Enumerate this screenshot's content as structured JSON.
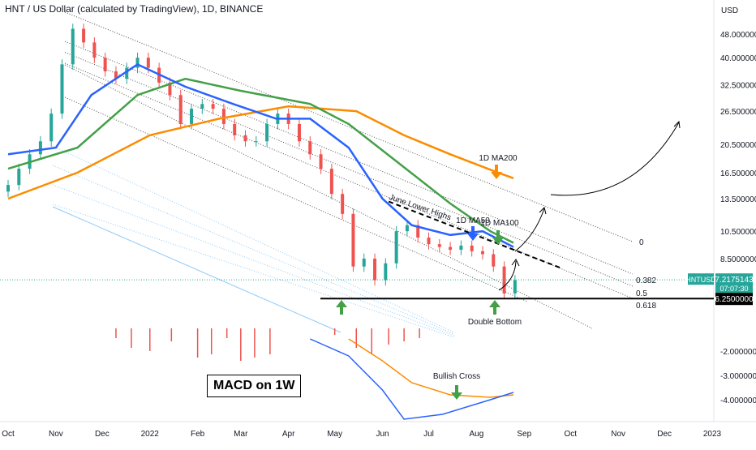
{
  "title": "HNT / US Dollar (calculated by TradingView), 1D, BINANCE",
  "macd_label": "MACD on 1W",
  "chart_data": {
    "type": "candlestick",
    "pair": "HNTUSD",
    "price_axis": {
      "unit": "USD",
      "scale": "log",
      "ticks": [
        "48.0000000",
        "40.0000000",
        "32.5000000",
        "26.5000000",
        "20.5000000",
        "16.5000000",
        "13.5000000",
        "10.5000000",
        "8.5000000"
      ],
      "tick_values": [
        48,
        40,
        32.5,
        26.5,
        20.5,
        16.5,
        13.5,
        10.5,
        8.5
      ]
    },
    "macd_axis": {
      "ticks": [
        "-2.0000000",
        "-3.0000000",
        "-4.0000000"
      ],
      "tick_values": [
        -2,
        -3,
        -4
      ]
    },
    "time_axis": [
      "Oct",
      "Nov",
      "Dec",
      "2022",
      "Feb",
      "Mar",
      "Apr",
      "May",
      "Jun",
      "Jul",
      "Aug",
      "Sep",
      "Oct",
      "Nov",
      "Dec",
      "2023"
    ],
    "current_price": {
      "label": "HNTUSD",
      "value": "7.2175143",
      "countdown": "07:07:30",
      "price": 7.2175,
      "color": "#26a69a"
    },
    "support_level": {
      "value": "6.2500000",
      "price": 6.25
    },
    "moving_averages": [
      {
        "name": "1D MA50",
        "color": "#2962ff"
      },
      {
        "name": "1D MA100",
        "color": "#43a047"
      },
      {
        "name": "1D MA200",
        "color": "#fb8c00"
      }
    ],
    "fib_levels": [
      "0",
      "0.382",
      "0.5",
      "0.618"
    ],
    "annotations": [
      "June Lower Highs",
      "Double Bottom",
      "Bullish Cross",
      "1D MA200",
      "1D MA50",
      "1D MA100"
    ],
    "series_close": [
      {
        "date": "2021-10-01",
        "close": 15
      },
      {
        "date": "2021-10-08",
        "close": 17
      },
      {
        "date": "2021-10-15",
        "close": 19
      },
      {
        "date": "2021-10-22",
        "close": 21
      },
      {
        "date": "2021-10-29",
        "close": 26
      },
      {
        "date": "2021-11-05",
        "close": 38
      },
      {
        "date": "2021-11-12",
        "close": 50
      },
      {
        "date": "2021-11-19",
        "close": 45
      },
      {
        "date": "2021-11-26",
        "close": 40
      },
      {
        "date": "2021-12-03",
        "close": 36
      },
      {
        "date": "2021-12-10",
        "close": 34
      },
      {
        "date": "2021-12-17",
        "close": 37
      },
      {
        "date": "2021-12-24",
        "close": 40
      },
      {
        "date": "2021-12-31",
        "close": 37
      },
      {
        "date": "2022-01-07",
        "close": 33
      },
      {
        "date": "2022-01-14",
        "close": 30
      },
      {
        "date": "2022-01-21",
        "close": 24
      },
      {
        "date": "2022-01-28",
        "close": 27
      },
      {
        "date": "2022-02-04",
        "close": 28
      },
      {
        "date": "2022-02-11",
        "close": 27
      },
      {
        "date": "2022-02-18",
        "close": 24
      },
      {
        "date": "2022-02-25",
        "close": 22
      },
      {
        "date": "2022-03-04",
        "close": 21
      },
      {
        "date": "2022-03-11",
        "close": 21
      },
      {
        "date": "2022-03-18",
        "close": 24
      },
      {
        "date": "2022-03-25",
        "close": 26
      },
      {
        "date": "2022-04-01",
        "close": 24
      },
      {
        "date": "2022-04-08",
        "close": 21
      },
      {
        "date": "2022-04-15",
        "close": 19
      },
      {
        "date": "2022-04-22",
        "close": 17
      },
      {
        "date": "2022-04-29",
        "close": 14
      },
      {
        "date": "2022-05-06",
        "close": 12
      },
      {
        "date": "2022-05-13",
        "close": 8
      },
      {
        "date": "2022-05-20",
        "close": 8.5
      },
      {
        "date": "2022-05-27",
        "close": 7.2
      },
      {
        "date": "2022-06-03",
        "close": 8.2
      },
      {
        "date": "2022-06-10",
        "close": 10.5
      },
      {
        "date": "2022-06-17",
        "close": 11
      },
      {
        "date": "2022-06-24",
        "close": 10
      },
      {
        "date": "2022-07-01",
        "close": 9.5
      },
      {
        "date": "2022-07-08",
        "close": 9.3
      },
      {
        "date": "2022-07-15",
        "close": 9.1
      },
      {
        "date": "2022-07-22",
        "close": 9.4
      },
      {
        "date": "2022-07-29",
        "close": 9.0
      },
      {
        "date": "2022-08-05",
        "close": 8.8
      },
      {
        "date": "2022-08-12",
        "close": 8.0
      },
      {
        "date": "2022-08-19",
        "close": 6.5
      },
      {
        "date": "2022-08-26",
        "close": 7.2
      }
    ],
    "ma50": [
      {
        "date": "2021-10-01",
        "value": 19
      },
      {
        "date": "2021-11-01",
        "value": 20
      },
      {
        "date": "2021-11-24",
        "value": 30
      },
      {
        "date": "2021-12-24",
        "value": 38
      },
      {
        "date": "2022-01-24",
        "value": 32
      },
      {
        "date": "2022-02-24",
        "value": 28
      },
      {
        "date": "2022-03-24",
        "value": 25
      },
      {
        "date": "2022-04-15",
        "value": 25
      },
      {
        "date": "2022-05-10",
        "value": 20
      },
      {
        "date": "2022-06-01",
        "value": 13.5
      },
      {
        "date": "2022-06-20",
        "value": 11
      },
      {
        "date": "2022-07-15",
        "value": 10.2
      },
      {
        "date": "2022-08-05",
        "value": 10.5
      },
      {
        "date": "2022-08-25",
        "value": 9.3
      }
    ],
    "ma100": [
      {
        "date": "2021-10-01",
        "value": 17
      },
      {
        "date": "2021-11-15",
        "value": 20
      },
      {
        "date": "2021-12-24",
        "value": 30
      },
      {
        "date": "2022-01-24",
        "value": 34
      },
      {
        "date": "2022-03-01",
        "value": 31
      },
      {
        "date": "2022-04-15",
        "value": 28
      },
      {
        "date": "2022-05-10",
        "value": 24
      },
      {
        "date": "2022-06-10",
        "value": 18
      },
      {
        "date": "2022-07-15",
        "value": 13
      },
      {
        "date": "2022-08-10",
        "value": 10.5
      },
      {
        "date": "2022-08-25",
        "value": 9.6
      }
    ],
    "ma200": [
      {
        "date": "2021-10-01",
        "value": 13.5
      },
      {
        "date": "2021-11-15",
        "value": 16.5
      },
      {
        "date": "2022-01-01",
        "value": 22
      },
      {
        "date": "2022-02-15",
        "value": 25
      },
      {
        "date": "2022-04-01",
        "value": 27.5
      },
      {
        "date": "2022-05-15",
        "value": 26.5
      },
      {
        "date": "2022-06-15",
        "value": 22
      },
      {
        "date": "2022-07-15",
        "value": 19
      },
      {
        "date": "2022-08-15",
        "value": 16.5
      },
      {
        "date": "2022-08-25",
        "value": 15.8
      }
    ],
    "macd_line": [
      {
        "date": "2022-04-15",
        "value": -1.5
      },
      {
        "date": "2022-05-10",
        "value": -2.2
      },
      {
        "date": "2022-06-01",
        "value": -3.6
      },
      {
        "date": "2022-06-15",
        "value": -4.8
      },
      {
        "date": "2022-07-10",
        "value": -4.6
      },
      {
        "date": "2022-08-10",
        "value": -4.0
      },
      {
        "date": "2022-08-25",
        "value": -3.7
      }
    ],
    "signal_line": [
      {
        "date": "2022-05-10",
        "value": -1.5
      },
      {
        "date": "2022-06-01",
        "value": -2.4
      },
      {
        "date": "2022-06-20",
        "value": -3.3
      },
      {
        "date": "2022-07-15",
        "value": -3.8
      },
      {
        "date": "2022-08-10",
        "value": -3.9
      },
      {
        "date": "2022-08-25",
        "value": -3.8
      }
    ],
    "macd_histogram": [
      {
        "date": "2021-12-10",
        "value": -0.3
      },
      {
        "date": "2021-12-20",
        "value": -0.6
      },
      {
        "date": "2022-01-01",
        "value": -0.7
      },
      {
        "date": "2022-01-15",
        "value": -0.4
      },
      {
        "date": "2022-02-01",
        "value": -0.9
      },
      {
        "date": "2022-02-10",
        "value": -0.8
      },
      {
        "date": "2022-02-20",
        "value": -0.3
      },
      {
        "date": "2022-03-01",
        "value": -1.0
      },
      {
        "date": "2022-03-10",
        "value": -0.9
      },
      {
        "date": "2022-03-20",
        "value": -0.8
      },
      {
        "date": "2022-05-01",
        "value": -0.2
      },
      {
        "date": "2022-05-15",
        "value": -0.6
      },
      {
        "date": "2022-05-25",
        "value": -0.8
      },
      {
        "date": "2022-06-05",
        "value": -0.5
      },
      {
        "date": "2022-06-15",
        "value": -0.4
      },
      {
        "date": "2022-06-25",
        "value": -0.3
      }
    ]
  }
}
